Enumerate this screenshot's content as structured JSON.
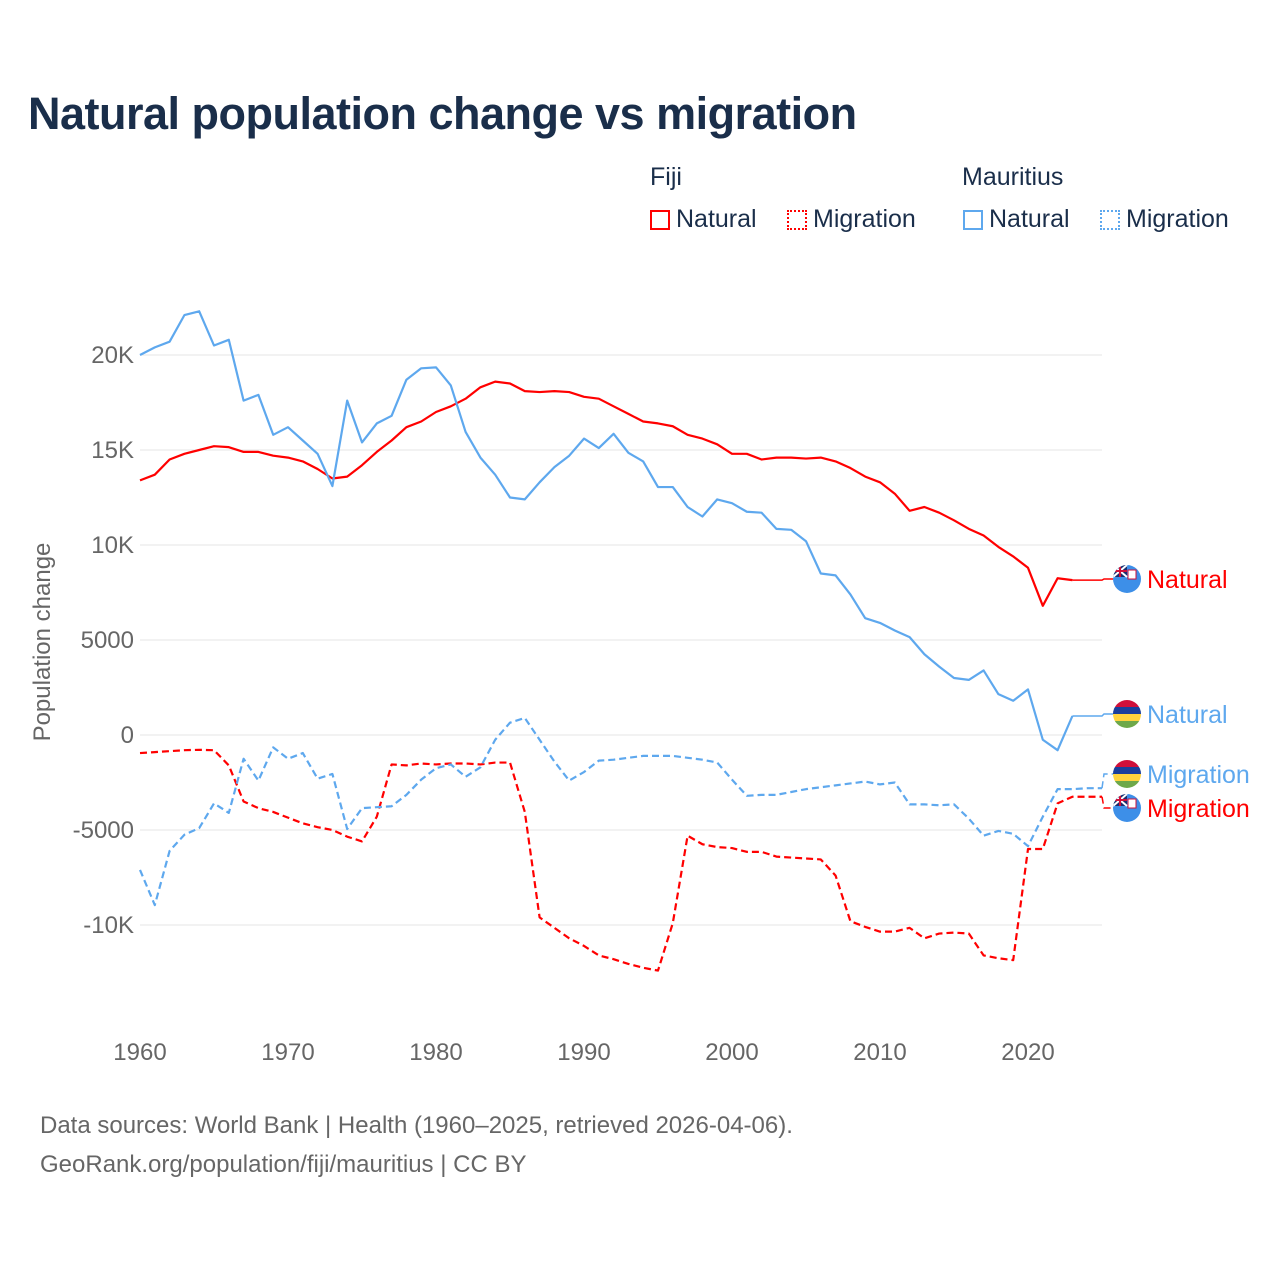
{
  "title": "Natural population change vs migration",
  "legend": {
    "groups": [
      {
        "name": "Fiji",
        "items": [
          {
            "label": "Natural",
            "style": "solid",
            "color": "#ff0000"
          },
          {
            "label": "Migration",
            "style": "dotted",
            "color": "#ff0000"
          }
        ]
      },
      {
        "name": "Mauritius",
        "items": [
          {
            "label": "Natural",
            "style": "solid",
            "color": "#5ea8ee"
          },
          {
            "label": "Migration",
            "style": "dotted",
            "color": "#5ea8ee"
          }
        ]
      }
    ]
  },
  "footer": {
    "line1": "Data sources: World Bank | Health (1960–2025, retrieved 2026-04-06).",
    "line2": "GeoRank.org/population/fiji/mauritius | CC BY"
  },
  "chart_data": {
    "type": "line",
    "title": "Natural population change vs migration",
    "xlabel": "",
    "ylabel": "Population change",
    "xlim": [
      1960,
      2025
    ],
    "ylim": [
      -14000,
      23000
    ],
    "x_ticks": [
      1960,
      1970,
      1980,
      1990,
      2000,
      2010,
      2020
    ],
    "x_tick_labels": [
      "1960",
      "1970",
      "1980",
      "1990",
      "2000",
      "2010",
      "2020"
    ],
    "y_ticks": [
      20000,
      15000,
      10000,
      5000,
      0,
      -5000,
      -10000
    ],
    "y_tick_labels": [
      "20K",
      "15K",
      "10K",
      "5000",
      "0",
      "-5000",
      "-10K"
    ],
    "grid": true,
    "series": [
      {
        "name": "Fiji Natural",
        "end_label": "Natural",
        "flag": "fiji",
        "color": "#ff0000",
        "dash": false,
        "start_year": 1960,
        "values": [
          13400,
          13700,
          14500,
          14800,
          15000,
          15200,
          15150,
          14900,
          14900,
          14700,
          14600,
          14400,
          14000,
          13500,
          13600,
          14200,
          14900,
          15500,
          16200,
          16500,
          17000,
          17300,
          17700,
          18300,
          18600,
          18500,
          18100,
          18050,
          18100,
          18050,
          17800,
          17700,
          17300,
          16900,
          16500,
          16400,
          16250,
          15800,
          15600,
          15300,
          14800,
          14800,
          14500,
          14600,
          14600,
          14550,
          14600,
          14400,
          14050,
          13600,
          13300,
          12700,
          11800,
          12000,
          11700,
          11300,
          10850,
          10500,
          9900,
          9400,
          8800,
          6800,
          8250,
          8150
        ]
      },
      {
        "name": "Fiji Migration",
        "end_label": "Migration",
        "flag": "fiji",
        "color": "#ff0000",
        "dash": true,
        "start_year": 1960,
        "values": [
          -950,
          -900,
          -850,
          -800,
          -780,
          -800,
          -1600,
          -3500,
          -3850,
          -4050,
          -4350,
          -4650,
          -4850,
          -5000,
          -5350,
          -5600,
          -4300,
          -1550,
          -1600,
          -1500,
          -1550,
          -1500,
          -1500,
          -1550,
          -1450,
          -1450,
          -4050,
          -9600,
          -10150,
          -10700,
          -11100,
          -11600,
          -11800,
          -12050,
          -12250,
          -12400,
          -9900,
          -5300,
          -5750,
          -5900,
          -5950,
          -6150,
          -6150,
          -6400,
          -6450,
          -6500,
          -6550,
          -7400,
          -9800,
          -10100,
          -10350,
          -10350,
          -10150,
          -10700,
          -10450,
          -10400,
          -10450,
          -11600,
          -11750,
          -11850,
          -6000,
          -6000,
          -3600,
          -3250,
          -3250,
          -3250
        ]
      },
      {
        "name": "Mauritius Natural",
        "end_label": "Natural",
        "flag": "mauritius",
        "color": "#5ea8ee",
        "dash": false,
        "start_year": 1960,
        "values": [
          20000,
          20400,
          20700,
          22100,
          22300,
          20500,
          20800,
          17600,
          17900,
          15800,
          16200,
          15500,
          14800,
          13100,
          17600,
          15400,
          16400,
          16800,
          18700,
          19300,
          19350,
          18400,
          15950,
          14600,
          13700,
          12500,
          12400,
          13300,
          14100,
          14700,
          15600,
          15100,
          15850,
          14850,
          14400,
          13050,
          13050,
          12000,
          11500,
          12400,
          12200,
          11750,
          11700,
          10850,
          10800,
          10200,
          8500,
          8400,
          7400,
          6150,
          5900,
          5500,
          5150,
          4250,
          3600,
          3000,
          2900,
          3400,
          2150,
          1800,
          2400,
          -250,
          -800,
          1000
        ]
      },
      {
        "name": "Mauritius Migration",
        "end_label": "Migration",
        "flag": "mauritius",
        "color": "#5ea8ee",
        "dash": true,
        "start_year": 1960,
        "values": [
          -7100,
          -8950,
          -6100,
          -5250,
          -4900,
          -3600,
          -4100,
          -1250,
          -2400,
          -650,
          -1250,
          -950,
          -2300,
          -2050,
          -4950,
          -3850,
          -3800,
          -3750,
          -3150,
          -2350,
          -1750,
          -1550,
          -2200,
          -1700,
          -250,
          650,
          900,
          -250,
          -1400,
          -2400,
          -1950,
          -1350,
          -1300,
          -1200,
          -1100,
          -1100,
          -1100,
          -1200,
          -1300,
          -1450,
          -2350,
          -3200,
          -3150,
          -3150,
          -3000,
          -2850,
          -2750,
          -2650,
          -2550,
          -2450,
          -2600,
          -2500,
          -3650,
          -3650,
          -3700,
          -3650,
          -4400,
          -5300,
          -5050,
          -5200,
          -5850,
          -4300,
          -2850,
          -2850,
          -2800,
          -2800
        ]
      }
    ]
  }
}
